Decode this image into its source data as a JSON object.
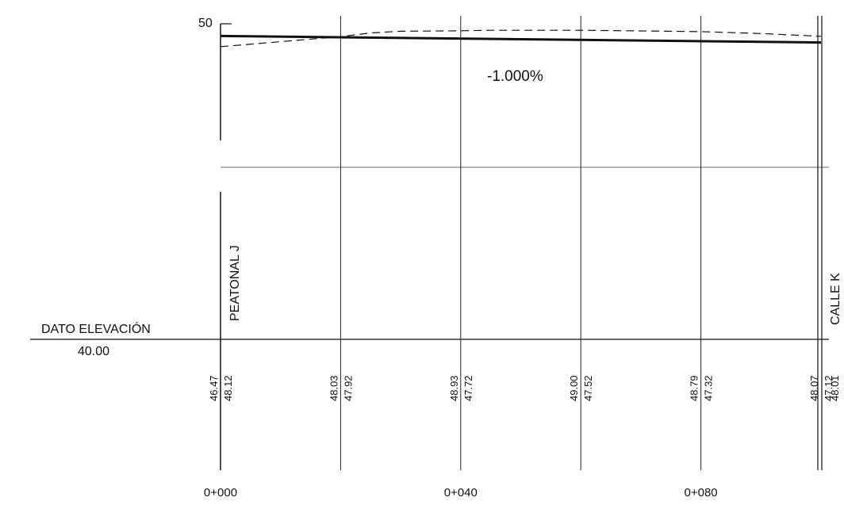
{
  "chart_data": {
    "type": "line",
    "title": "",
    "xlabel": "",
    "ylabel": "",
    "y_top_label": "50",
    "datum_label": "DATO ELEVACIÓN",
    "datum_value": "40.00",
    "grade_label": "-1.000%",
    "start_street": "PEATONAL J",
    "end_street": "CALLE K",
    "xlim": [
      0,
      100
    ],
    "ylim": [
      40,
      50
    ],
    "grid": true,
    "x_ticks": [
      {
        "value": 0,
        "label": "0+000"
      },
      {
        "value": 40,
        "label": "0+040"
      },
      {
        "value": 80,
        "label": "0+080"
      }
    ],
    "stations": [
      {
        "x": 0,
        "existing": "46.47",
        "design": "48.12"
      },
      {
        "x": 20,
        "existing": "48.03",
        "design": "47.92"
      },
      {
        "x": 40,
        "existing": "48.93",
        "design": "47.72"
      },
      {
        "x": 60,
        "existing": "49.00",
        "design": "47.52"
      },
      {
        "x": 80,
        "existing": "48.79",
        "design": "47.32"
      },
      {
        "x": 100,
        "existing": "48.07",
        "design": "47.12"
      },
      {
        "x": 101,
        "existing": "48.01",
        "design": ""
      }
    ],
    "series": [
      {
        "name": "",
        "style": "solid",
        "x": [
          0,
          100
        ],
        "y": [
          48.12,
          47.12
        ]
      },
      {
        "name": "",
        "style": "dashed",
        "x": [
          0,
          20,
          25,
          30,
          40,
          45,
          60,
          70,
          80,
          90,
          100
        ],
        "y": [
          46.47,
          48.03,
          48.6,
          48.85,
          48.93,
          49.0,
          49.0,
          48.9,
          48.79,
          48.5,
          48.07
        ]
      }
    ],
    "colors": {
      "line": "#111111",
      "grid": "#222222",
      "background": "#ffffff"
    }
  }
}
